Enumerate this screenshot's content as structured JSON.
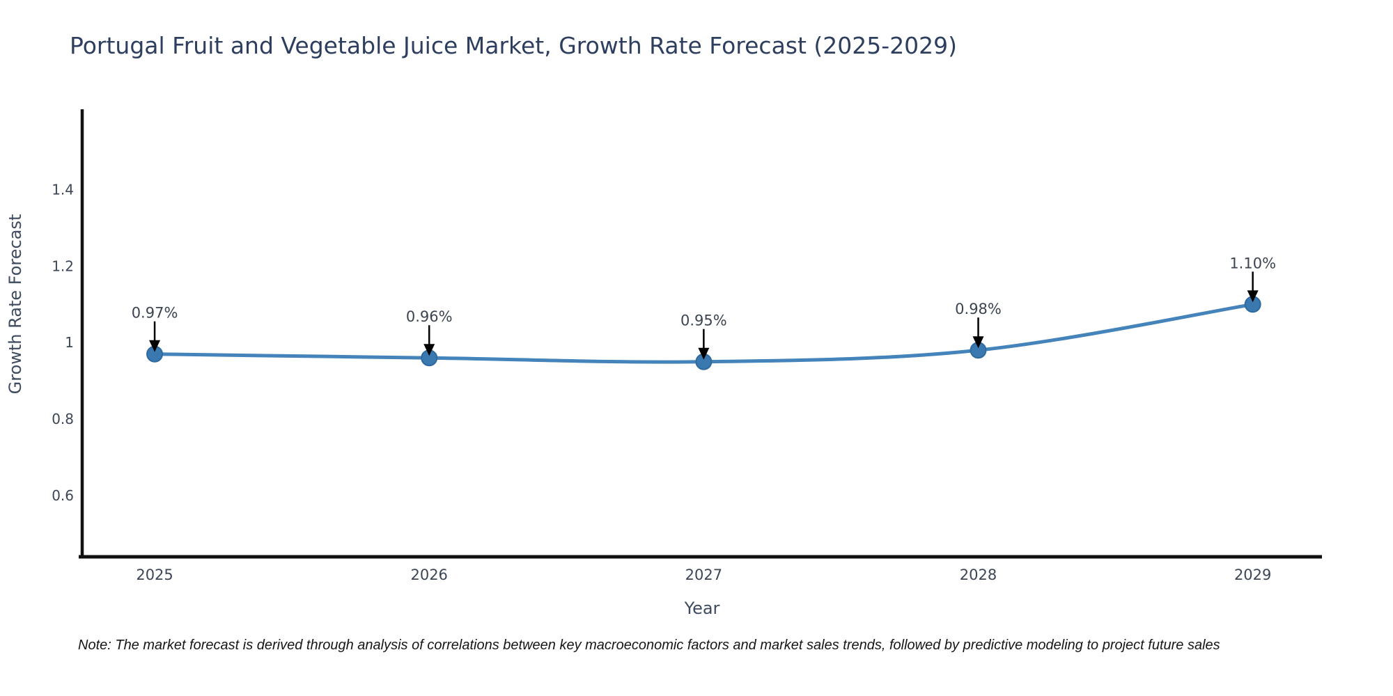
{
  "chart_data": {
    "type": "line",
    "title": "Portugal Fruit and Vegetable Juice Market, Growth Rate Forecast (2025-2029)",
    "xlabel": "Year",
    "ylabel": "Growth Rate Forecast",
    "x": [
      2025,
      2026,
      2027,
      2028,
      2029
    ],
    "values": [
      0.97,
      0.96,
      0.95,
      0.98,
      1.1
    ],
    "point_labels": [
      "0.97%",
      "0.96%",
      "0.95%",
      "0.98%",
      "1.10%"
    ],
    "series_name": "Growth Rate Forecast",
    "x_tick_labels": [
      "2025",
      "2026",
      "2027",
      "2028",
      "2029"
    ],
    "y_ticks": [
      1.4,
      1.2,
      1,
      0.8,
      0.6
    ],
    "y_tick_labels": [
      "1.4",
      "1.2",
      "1",
      "0.8",
      "0.6"
    ],
    "x_range": [
      2024.736,
      2029.252
    ],
    "y_range": [
      0.44,
      1.61
    ],
    "grid": false,
    "legend": false,
    "curve": "spline",
    "line_color": "#4484bb",
    "marker_color": "#3a78b0",
    "marker_edge_color": "#2f6a9e",
    "arrow_color": "#000000",
    "axis_color": "#111111",
    "annotation_color": "#3d4451",
    "tick_color": "#3c4656",
    "axis_title_color": "#3e4a5e",
    "title_color": "#2d3e5f",
    "background_color": "#ffffff"
  },
  "note": "Note: The market forecast is derived through analysis of correlations between key macroeconomic factors and market sales trends, followed by predictive modeling to project future sales"
}
